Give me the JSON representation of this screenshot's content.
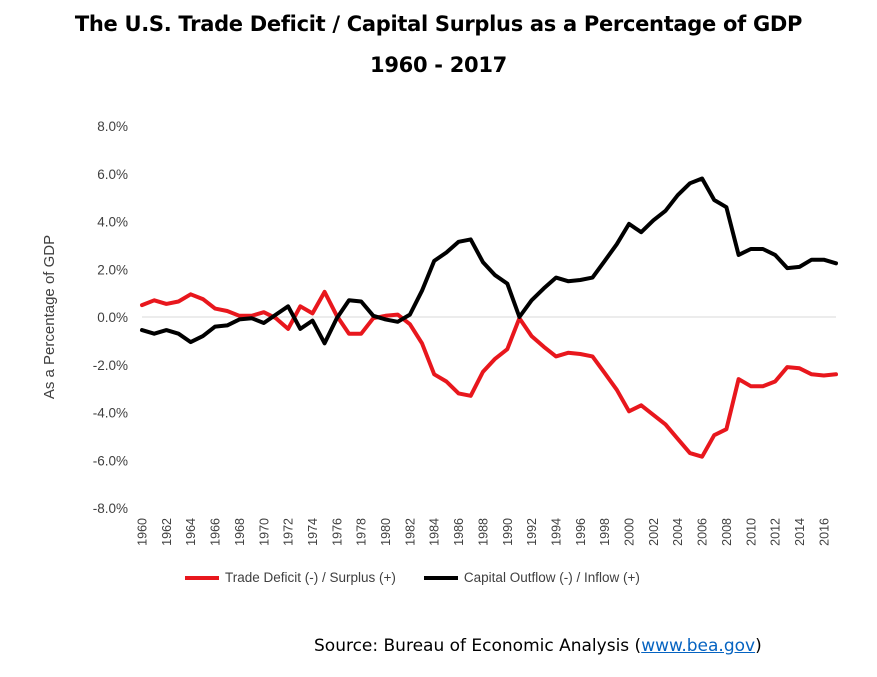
{
  "title_line1": "The U.S. Trade Deficit / Capital Surplus as a Percentage of GDP",
  "title_line2": "1960 - 2017",
  "source_prefix": "Source: Bureau of Economic Analysis (",
  "source_link": "www.bea.gov",
  "source_suffix": ")",
  "colors": {
    "trade": "#e8171d",
    "capital": "#000000",
    "axis_text": "#404040",
    "zero_line": "#d9d9d9"
  },
  "chart_data": {
    "type": "line",
    "ylabel": "As a Percentage of GDP",
    "ylim": [
      -8.0,
      8.0
    ],
    "yticks": [
      "8.0%",
      "6.0%",
      "4.0%",
      "2.0%",
      "0.0%",
      "-2.0%",
      "-4.0%",
      "-6.0%",
      "-8.0%"
    ],
    "ytick_values": [
      8,
      6,
      4,
      2,
      0,
      -2,
      -4,
      -6,
      -8
    ],
    "xtick_labels": [
      "1960",
      "1962",
      "1964",
      "1966",
      "1968",
      "1970",
      "1972",
      "1974",
      "1976",
      "1978",
      "1980",
      "1982",
      "1984",
      "1986",
      "1988",
      "1990",
      "1992",
      "1994",
      "1996",
      "1998",
      "2000",
      "2002",
      "2004",
      "2006",
      "2008",
      "2010",
      "2012",
      "2014",
      "2016"
    ],
    "legend_position": "bottom",
    "x": [
      1960,
      1961,
      1962,
      1963,
      1964,
      1965,
      1966,
      1967,
      1968,
      1969,
      1970,
      1971,
      1972,
      1973,
      1974,
      1975,
      1976,
      1977,
      1978,
      1979,
      1980,
      1981,
      1982,
      1983,
      1984,
      1985,
      1986,
      1987,
      1988,
      1989,
      1990,
      1991,
      1992,
      1993,
      1994,
      1995,
      1996,
      1997,
      1998,
      1999,
      2000,
      2001,
      2002,
      2003,
      2004,
      2005,
      2006,
      2007,
      2008,
      2009,
      2010,
      2011,
      2012,
      2013,
      2014,
      2015,
      2016,
      2017
    ],
    "series": [
      {
        "name": "Trade Deficit (-) / Surplus (+)",
        "color": "#e8171d",
        "values": [
          0.5,
          0.7,
          0.55,
          0.65,
          0.95,
          0.75,
          0.35,
          0.25,
          0.05,
          0.05,
          0.2,
          -0.05,
          -0.5,
          0.45,
          0.15,
          1.05,
          0.05,
          -0.7,
          -0.7,
          -0.05,
          0.05,
          0.1,
          -0.3,
          -1.1,
          -2.4,
          -2.7,
          -3.2,
          -3.3,
          -2.3,
          -1.75,
          -1.35,
          -0.05,
          -0.8,
          -1.25,
          -1.65,
          -1.5,
          -1.55,
          -1.65,
          -2.35,
          -3.05,
          -3.95,
          -3.7,
          -4.1,
          -4.5,
          -5.1,
          -5.7,
          -5.85,
          -4.95,
          -4.7,
          -2.6,
          -2.9,
          -2.9,
          -2.7,
          -2.1,
          -2.15,
          -2.4,
          -2.45,
          -2.4
        ]
      },
      {
        "name": "Capital Outflow (-) / Inflow (+)",
        "color": "#000000",
        "values": [
          -0.55,
          -0.7,
          -0.55,
          -0.7,
          -1.05,
          -0.8,
          -0.4,
          -0.35,
          -0.1,
          -0.05,
          -0.25,
          0.1,
          0.45,
          -0.5,
          -0.15,
          -1.1,
          -0.05,
          0.7,
          0.65,
          0.05,
          -0.1,
          -0.2,
          0.1,
          1.1,
          2.35,
          2.7,
          3.15,
          3.25,
          2.3,
          1.75,
          1.4,
          0.0,
          0.7,
          1.2,
          1.65,
          1.5,
          1.55,
          1.65,
          2.35,
          3.05,
          3.9,
          3.55,
          4.05,
          4.45,
          5.1,
          5.6,
          5.8,
          4.9,
          4.6,
          2.6,
          2.85,
          2.85,
          2.6,
          2.05,
          2.1,
          2.4,
          2.4,
          2.25
        ]
      }
    ]
  }
}
